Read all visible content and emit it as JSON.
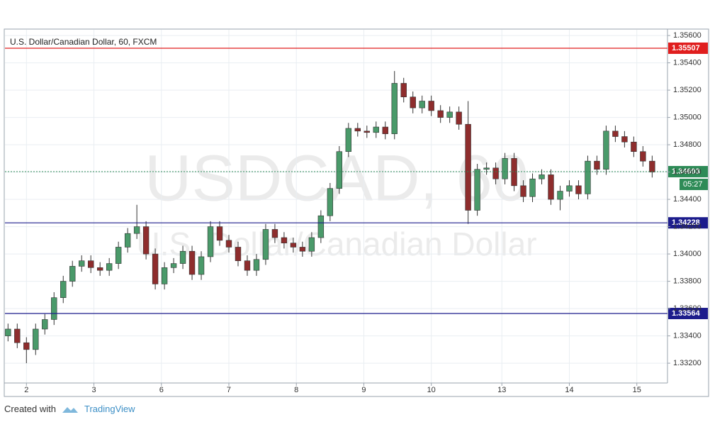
{
  "chart_data": {
    "type": "candlestick",
    "title": "U.S. Dollar/Canadian Dollar, 60, FXCM",
    "watermark": [
      "USDCAD, 60",
      "U.S. Dollar/Canadian Dollar"
    ],
    "x": [
      1,
      4,
      7,
      10,
      13,
      16,
      19,
      22,
      25,
      28,
      31,
      34,
      37,
      40,
      43,
      46,
      49,
      52,
      55,
      58,
      61,
      64,
      67,
      70,
      73,
      76,
      79,
      82,
      85,
      88,
      91,
      94,
      97,
      100,
      103,
      106,
      109,
      112,
      115,
      118,
      121,
      124,
      127,
      130,
      133,
      136,
      139,
      142,
      145,
      148,
      151,
      154,
      157,
      160,
      163,
      166,
      169,
      172,
      175,
      178,
      181,
      184,
      187,
      190,
      193,
      196,
      199,
      202,
      205,
      208,
      211
    ],
    "open": [
      1.334,
      1.3345,
      1.3335,
      1.333,
      1.3345,
      1.3352,
      1.3368,
      1.338,
      1.3391,
      1.3395,
      1.339,
      1.3388,
      1.3393,
      1.3405,
      1.3415,
      1.342,
      1.34,
      1.3378,
      1.339,
      1.3393,
      1.3402,
      1.3385,
      1.3398,
      1.342,
      1.341,
      1.3405,
      1.3395,
      1.3388,
      1.3396,
      1.3418,
      1.3412,
      1.3408,
      1.3405,
      1.3402,
      1.3412,
      1.3428,
      1.3448,
      1.3475,
      1.3492,
      1.349,
      1.3489,
      1.3493,
      1.3488,
      1.3525,
      1.3515,
      1.3507,
      1.3512,
      1.3505,
      1.35,
      1.3504,
      1.3495,
      1.3432,
      1.3462,
      1.3463,
      1.3455,
      1.347,
      1.345,
      1.3442,
      1.3455,
      1.3458,
      1.344,
      1.3446,
      1.345,
      1.3444,
      1.3468,
      1.3462,
      1.349,
      1.3486,
      1.3482,
      1.3475,
      1.3468
    ],
    "high": [
      1.3349,
      1.3349,
      1.3339,
      1.3349,
      1.3356,
      1.3372,
      1.3384,
      1.3395,
      1.3399,
      1.3399,
      1.3394,
      1.3397,
      1.3409,
      1.3419,
      1.3436,
      1.3424,
      1.3404,
      1.3394,
      1.3397,
      1.3406,
      1.3406,
      1.3402,
      1.3424,
      1.3424,
      1.3414,
      1.3409,
      1.3399,
      1.34,
      1.3422,
      1.3422,
      1.3416,
      1.3412,
      1.3409,
      1.3416,
      1.3432,
      1.3452,
      1.3479,
      1.3496,
      1.3496,
      1.3494,
      1.3497,
      1.3497,
      1.3534,
      1.3529,
      1.3519,
      1.3516,
      1.3516,
      1.3509,
      1.3508,
      1.3508,
      1.3512,
      1.3466,
      1.3467,
      1.3467,
      1.3474,
      1.3474,
      1.3454,
      1.3459,
      1.3462,
      1.3462,
      1.345,
      1.3454,
      1.3454,
      1.3472,
      1.3472,
      1.3494,
      1.3494,
      1.349,
      1.3486,
      1.3479,
      1.3472
    ],
    "low": [
      1.3336,
      1.3331,
      1.332,
      1.3326,
      1.3341,
      1.3348,
      1.3364,
      1.3376,
      1.3387,
      1.3386,
      1.3384,
      1.3384,
      1.3389,
      1.3401,
      1.3411,
      1.3396,
      1.3374,
      1.3374,
      1.3386,
      1.3389,
      1.3381,
      1.3381,
      1.3394,
      1.3406,
      1.3401,
      1.3391,
      1.3384,
      1.3384,
      1.3392,
      1.3408,
      1.3404,
      1.3401,
      1.3398,
      1.3398,
      1.3408,
      1.3424,
      1.3444,
      1.3471,
      1.3486,
      1.3485,
      1.3485,
      1.3484,
      1.3484,
      1.3511,
      1.3503,
      1.3503,
      1.3501,
      1.3496,
      1.3496,
      1.3491,
      1.3422,
      1.3428,
      1.3458,
      1.3451,
      1.3451,
      1.3446,
      1.3438,
      1.3438,
      1.3451,
      1.3436,
      1.3432,
      1.3442,
      1.344,
      1.344,
      1.3458,
      1.3458,
      1.3482,
      1.3478,
      1.3471,
      1.3464,
      1.3456
    ],
    "close": [
      1.3345,
      1.3335,
      1.333,
      1.3345,
      1.3352,
      1.3368,
      1.338,
      1.3391,
      1.3395,
      1.339,
      1.3388,
      1.3393,
      1.3405,
      1.3415,
      1.342,
      1.34,
      1.3378,
      1.339,
      1.3393,
      1.3402,
      1.3385,
      1.3398,
      1.342,
      1.341,
      1.3405,
      1.3395,
      1.3388,
      1.3396,
      1.3418,
      1.3412,
      1.3408,
      1.3405,
      1.3402,
      1.3412,
      1.3428,
      1.3448,
      1.3475,
      1.3492,
      1.349,
      1.3489,
      1.3493,
      1.3488,
      1.3525,
      1.3515,
      1.3507,
      1.3512,
      1.3505,
      1.35,
      1.3504,
      1.3495,
      1.3432,
      1.3462,
      1.3463,
      1.3455,
      1.347,
      1.345,
      1.3442,
      1.3455,
      1.3458,
      1.344,
      1.3446,
      1.345,
      1.3444,
      1.3468,
      1.3462,
      1.349,
      1.3486,
      1.3482,
      1.3475,
      1.3468,
      1.346
    ],
    "up_color": "#4a9a6a",
    "down_color": "#8e2d2d",
    "xlim": [
      0,
      216
    ],
    "xticks": [
      {
        "value": 7,
        "label": "2"
      },
      {
        "value": 29,
        "label": "3"
      },
      {
        "value": 51,
        "label": "6"
      },
      {
        "value": 73,
        "label": "7"
      },
      {
        "value": 95,
        "label": "8"
      },
      {
        "value": 117,
        "label": "9"
      },
      {
        "value": 139,
        "label": "10"
      },
      {
        "value": 162,
        "label": "13"
      },
      {
        "value": 184,
        "label": "14"
      },
      {
        "value": 206,
        "label": "15"
      }
    ],
    "ylim": [
      1.33055,
      1.35642
    ],
    "yticks": [
      {
        "value": 1.332,
        "label": "1.33200"
      },
      {
        "value": 1.334,
        "label": "1.33400"
      },
      {
        "value": 1.336,
        "label": "1.33600"
      },
      {
        "value": 1.338,
        "label": "1.33800"
      },
      {
        "value": 1.34,
        "label": "1.34000"
      },
      {
        "value": 1.342,
        "label": "1.34200"
      },
      {
        "value": 1.344,
        "label": "1.34400"
      },
      {
        "value": 1.346,
        "label": "1.34600"
      },
      {
        "value": 1.348,
        "label": "1.34800"
      },
      {
        "value": 1.35,
        "label": "1.35000"
      },
      {
        "value": 1.352,
        "label": "1.35200"
      },
      {
        "value": 1.354,
        "label": "1.35400"
      },
      {
        "value": 1.356,
        "label": "1.35600"
      }
    ],
    "grid": true,
    "levels": [
      {
        "value": 1.35507,
        "color": "#e01e1e"
      },
      {
        "value": 1.34228,
        "color": "#1c1c8c"
      },
      {
        "value": 1.33564,
        "color": "#1c1c8c"
      }
    ],
    "last_price": {
      "value": 1.34603,
      "color": "#2e8b57",
      "countdown": "05:27"
    }
  },
  "footer": {
    "created": "Created with",
    "brand": "TradingView"
  }
}
